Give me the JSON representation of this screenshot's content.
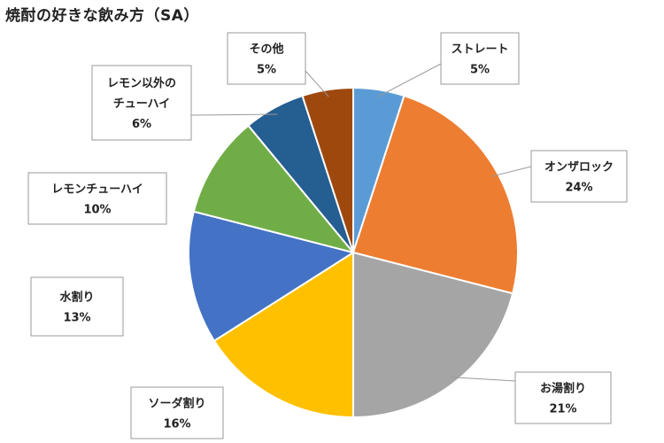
{
  "chart_data": {
    "type": "pie",
    "title": "焼酎の好きな飲み方（SA）",
    "slices": [
      {
        "label": [
          "ストレート"
        ],
        "percent_label": "5%",
        "value": 5,
        "color": "#5b9bd5"
      },
      {
        "label": [
          "オンザロック"
        ],
        "percent_label": "24%",
        "value": 24,
        "color": "#ed7d31"
      },
      {
        "label": [
          "お湯割り"
        ],
        "percent_label": "21%",
        "value": 21,
        "color": "#a5a5a5"
      },
      {
        "label": [
          "ソーダ割り"
        ],
        "percent_label": "16%",
        "value": 16,
        "color": "#ffc000"
      },
      {
        "label": [
          "水割り"
        ],
        "percent_label": "13%",
        "value": 13,
        "color": "#4472c4"
      },
      {
        "label": [
          "レモンチューハイ"
        ],
        "percent_label": "10%",
        "value": 10,
        "color": "#70ad47"
      },
      {
        "label": [
          "レモン以外の",
          "チューハイ"
        ],
        "percent_label": "6%",
        "value": 6,
        "color": "#255e91"
      },
      {
        "label": [
          "その他"
        ],
        "percent_label": "5%",
        "value": 5,
        "color": "#9e480e"
      }
    ]
  }
}
